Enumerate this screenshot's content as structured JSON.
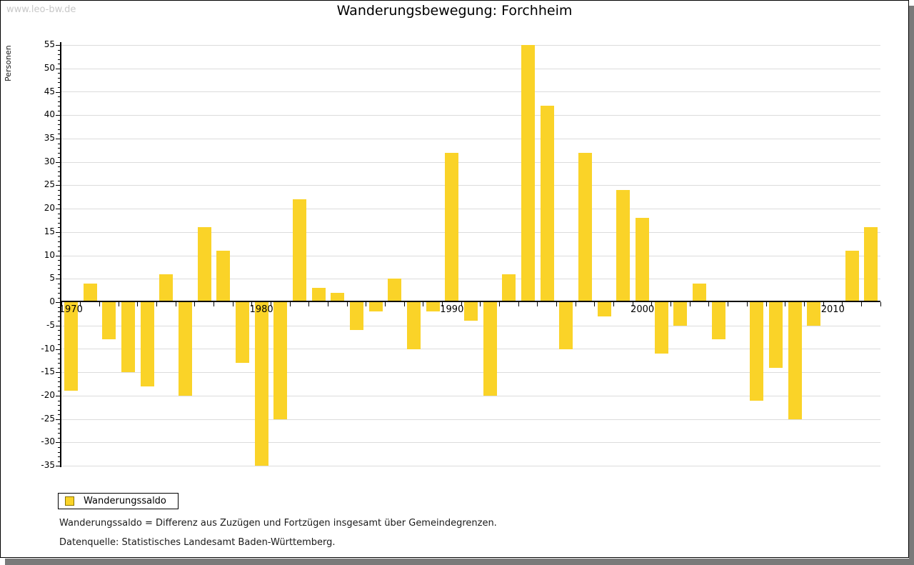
{
  "watermark": "www.leo-bw.de",
  "title": "Wanderungsbewegung: Forchheim",
  "legend": {
    "label": "Wanderungssaldo"
  },
  "footnotes": {
    "definition": "Wanderungssaldo = Differenz aus Zuzügen und Fortzügen insgesamt über Gemeindegrenzen.",
    "source": "Datenquelle: Statistisches Landesamt Baden-Württemberg."
  },
  "colors": {
    "bar": "#FAD328",
    "legend_swatch_border": "#8A7400",
    "grid": "#DCDCDC",
    "axis": "#000000",
    "watermark": "#C8C8C8",
    "window_shadow": "#7A7A7A"
  },
  "chart_data": {
    "type": "bar",
    "title": "Wanderungsbewegung: Forchheim",
    "ylabel": "Personen",
    "legend_position": "bottom-left",
    "grid": true,
    "ylim": [
      -35,
      55
    ],
    "ytick_major": 5,
    "ytick_minor": 1,
    "xtick_labels": [
      "1970",
      "1980",
      "1990",
      "2000",
      "2010"
    ],
    "categories": [
      1970,
      1971,
      1972,
      1973,
      1974,
      1975,
      1976,
      1977,
      1978,
      1979,
      1980,
      1981,
      1982,
      1983,
      1984,
      1985,
      1986,
      1987,
      1988,
      1989,
      1990,
      1991,
      1992,
      1993,
      1994,
      1995,
      1996,
      1997,
      1998,
      1999,
      2000,
      2001,
      2002,
      2003,
      2004,
      2005,
      2006,
      2007,
      2008,
      2009,
      2010,
      2011,
      2012
    ],
    "series": [
      {
        "name": "Wanderungssaldo",
        "values": [
          -19,
          4,
          -8,
          -15,
          -18,
          6,
          -20,
          16,
          11,
          -13,
          -35,
          -25,
          22,
          3,
          2,
          -6,
          -2,
          5,
          -10,
          -2,
          32,
          -4,
          -20,
          6,
          55,
          42,
          -10,
          32,
          -3,
          24,
          18,
          -11,
          -5,
          4,
          -8,
          0,
          -21,
          -14,
          -25,
          -5,
          0,
          11,
          16
        ]
      }
    ]
  }
}
